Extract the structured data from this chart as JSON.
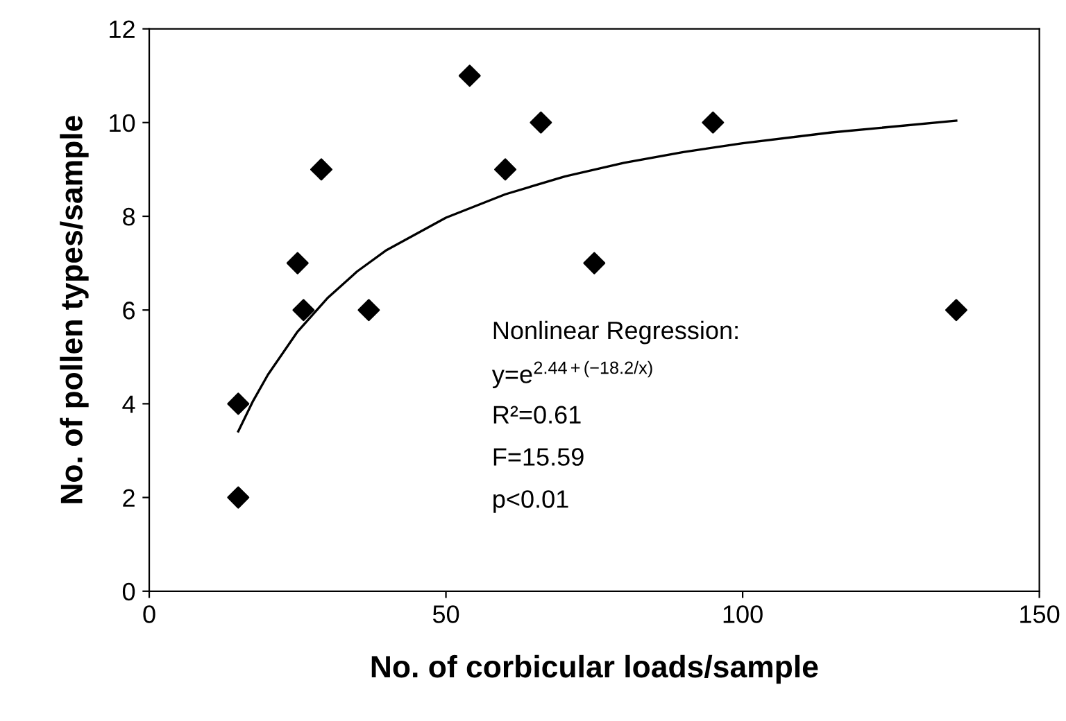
{
  "chart_data": {
    "type": "scatter",
    "xlabel": "No. of corbicular loads/sample",
    "ylabel": "No. of pollen types/sample",
    "xlim": [
      0,
      150
    ],
    "xticks": [
      0,
      50,
      100,
      150
    ],
    "ylim": [
      0,
      12
    ],
    "yticks": [
      0,
      2,
      4,
      6,
      8,
      10,
      12
    ],
    "grid": false,
    "legend": false,
    "series": [
      {
        "color": "#000000",
        "marker": "diamond",
        "x": [
          15,
          15,
          25,
          26,
          29,
          37,
          54,
          60,
          66,
          75,
          95,
          136
        ],
        "values": [
          4,
          2,
          7,
          6,
          9,
          6,
          11,
          9,
          10,
          7,
          10,
          6
        ]
      },
      {
        "type": "line",
        "color": "#000000",
        "marker": "none",
        "line_style": "solid",
        "x": [
          15,
          17.5,
          20,
          25,
          30,
          35,
          40,
          50,
          60,
          70,
          80,
          90,
          100,
          115,
          136
        ],
        "values": [
          3.41,
          4.06,
          4.62,
          5.54,
          6.25,
          6.82,
          7.28,
          7.97,
          8.47,
          8.85,
          9.14,
          9.37,
          9.56,
          9.79,
          10.04
        ]
      }
    ],
    "annotations": [
      "Nonlinear Regression:",
      "y=e$^{2.44+(−18.2/x)}$",
      "R²=0.61",
      "F=15.59",
      "p<0.01"
    ]
  }
}
